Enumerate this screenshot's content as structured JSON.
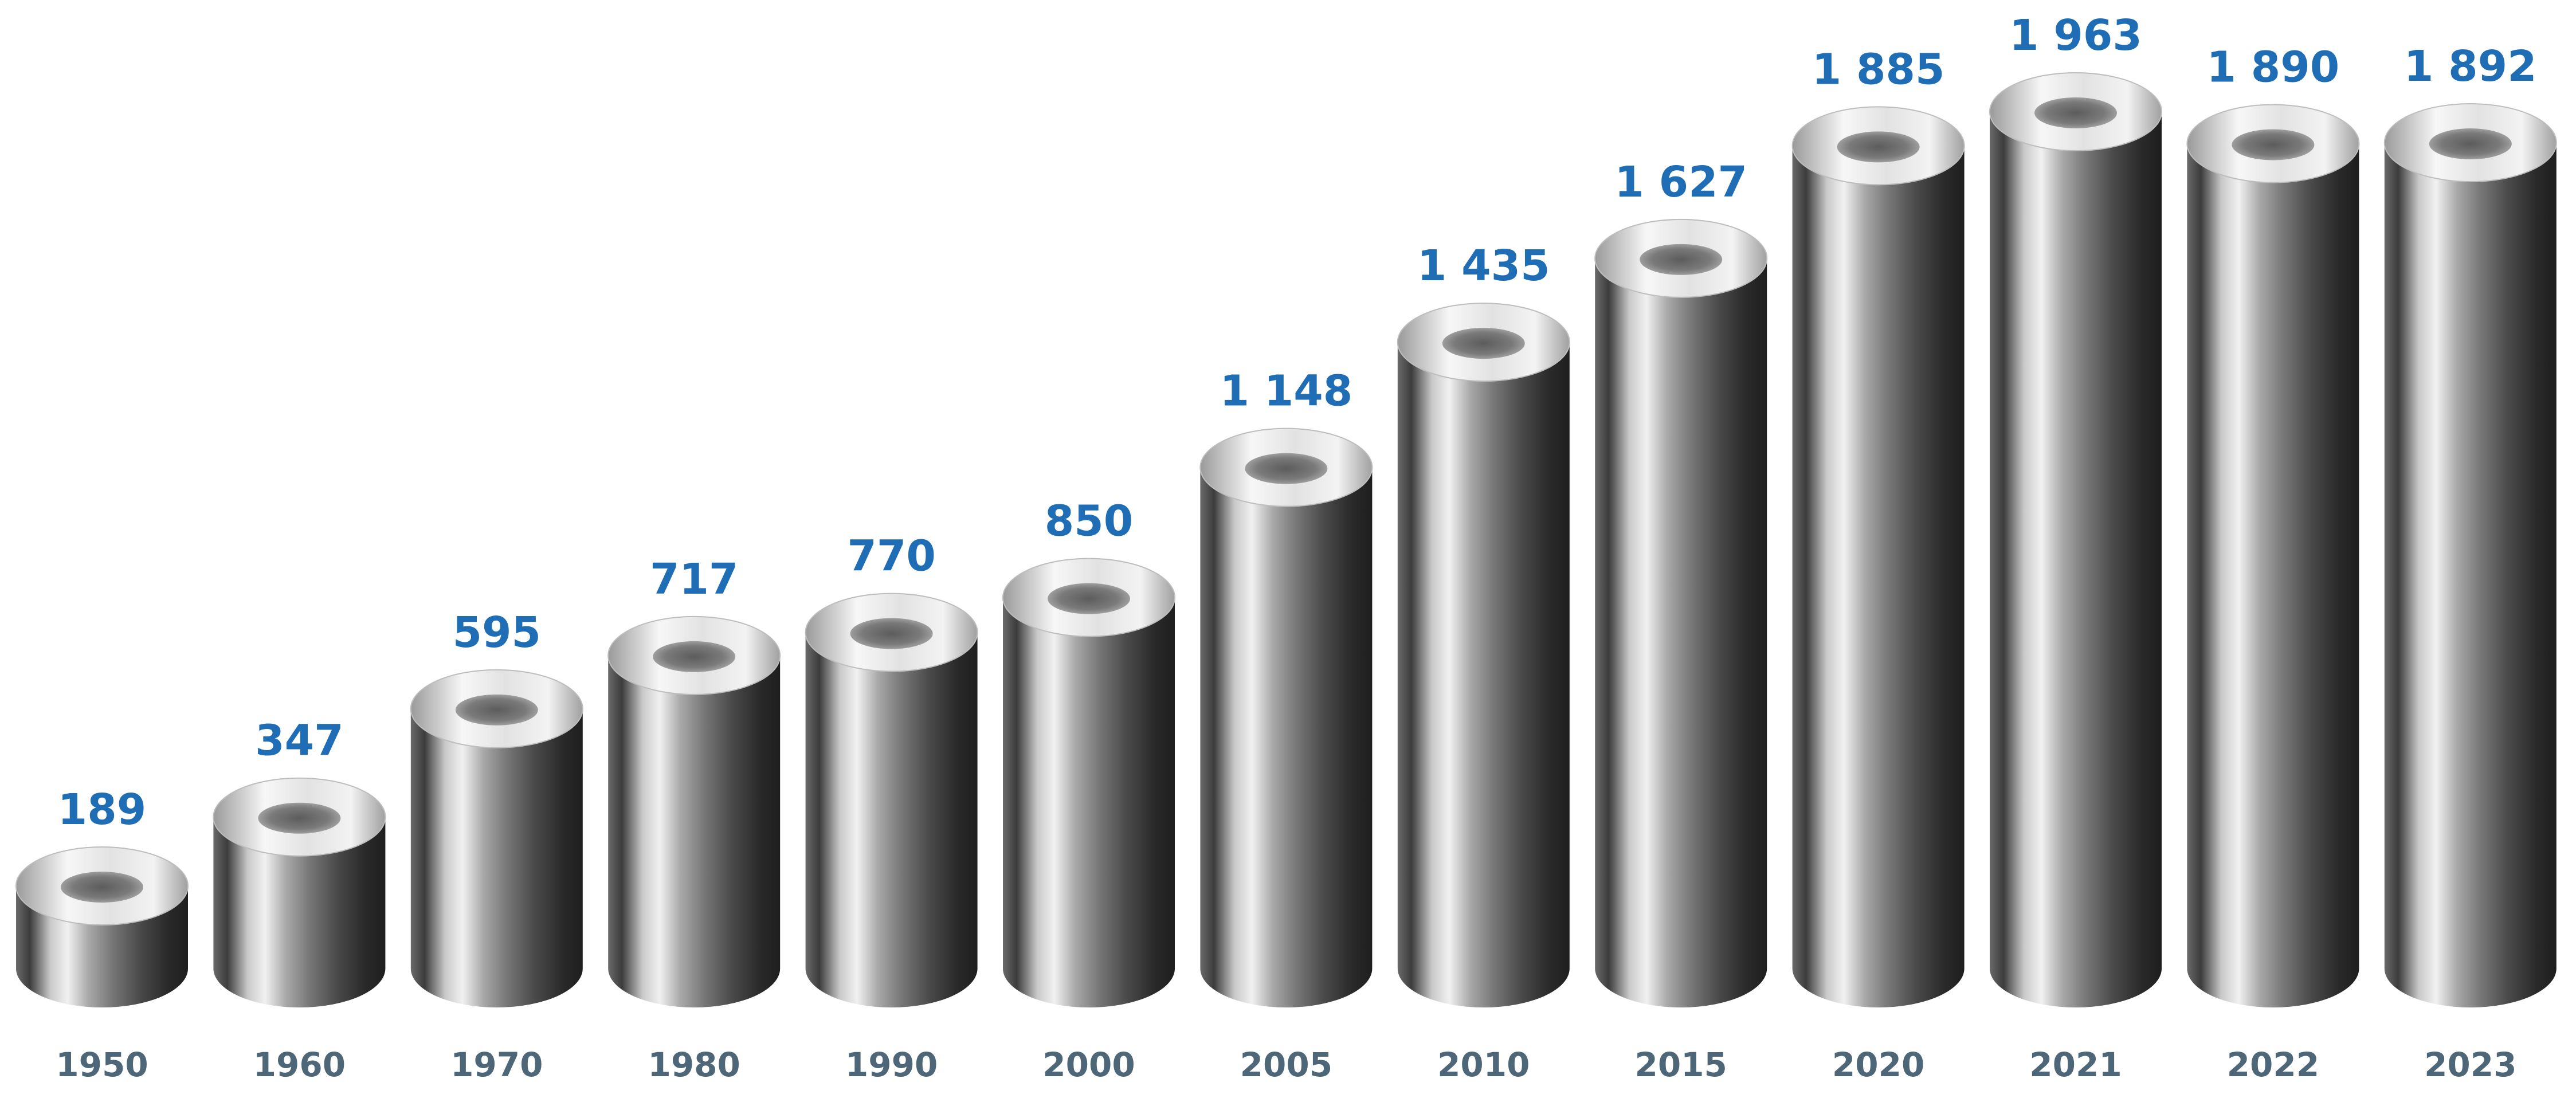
{
  "chart_data": {
    "type": "bar",
    "categories": [
      "1950",
      "1960",
      "1970",
      "1980",
      "1990",
      "2000",
      "2005",
      "2010",
      "2015",
      "2020",
      "2021",
      "2022",
      "2023"
    ],
    "values": [
      189,
      347,
      595,
      717,
      770,
      850,
      1148,
      1435,
      1627,
      1885,
      1963,
      1890,
      1892
    ],
    "value_labels": [
      "189",
      "347",
      "595",
      "717",
      "770",
      "850",
      "1 148",
      "1 435",
      "1 627",
      "1 885",
      "1 963",
      "1 890",
      "1 892"
    ],
    "title": "",
    "xlabel": "",
    "ylabel": "",
    "ylim": [
      0,
      2000
    ],
    "grid": false,
    "legend": "none",
    "bar_style": "3d-metal-tube",
    "colors": {
      "value_label": "#1f6db5",
      "year_label": "#4d6678"
    }
  }
}
